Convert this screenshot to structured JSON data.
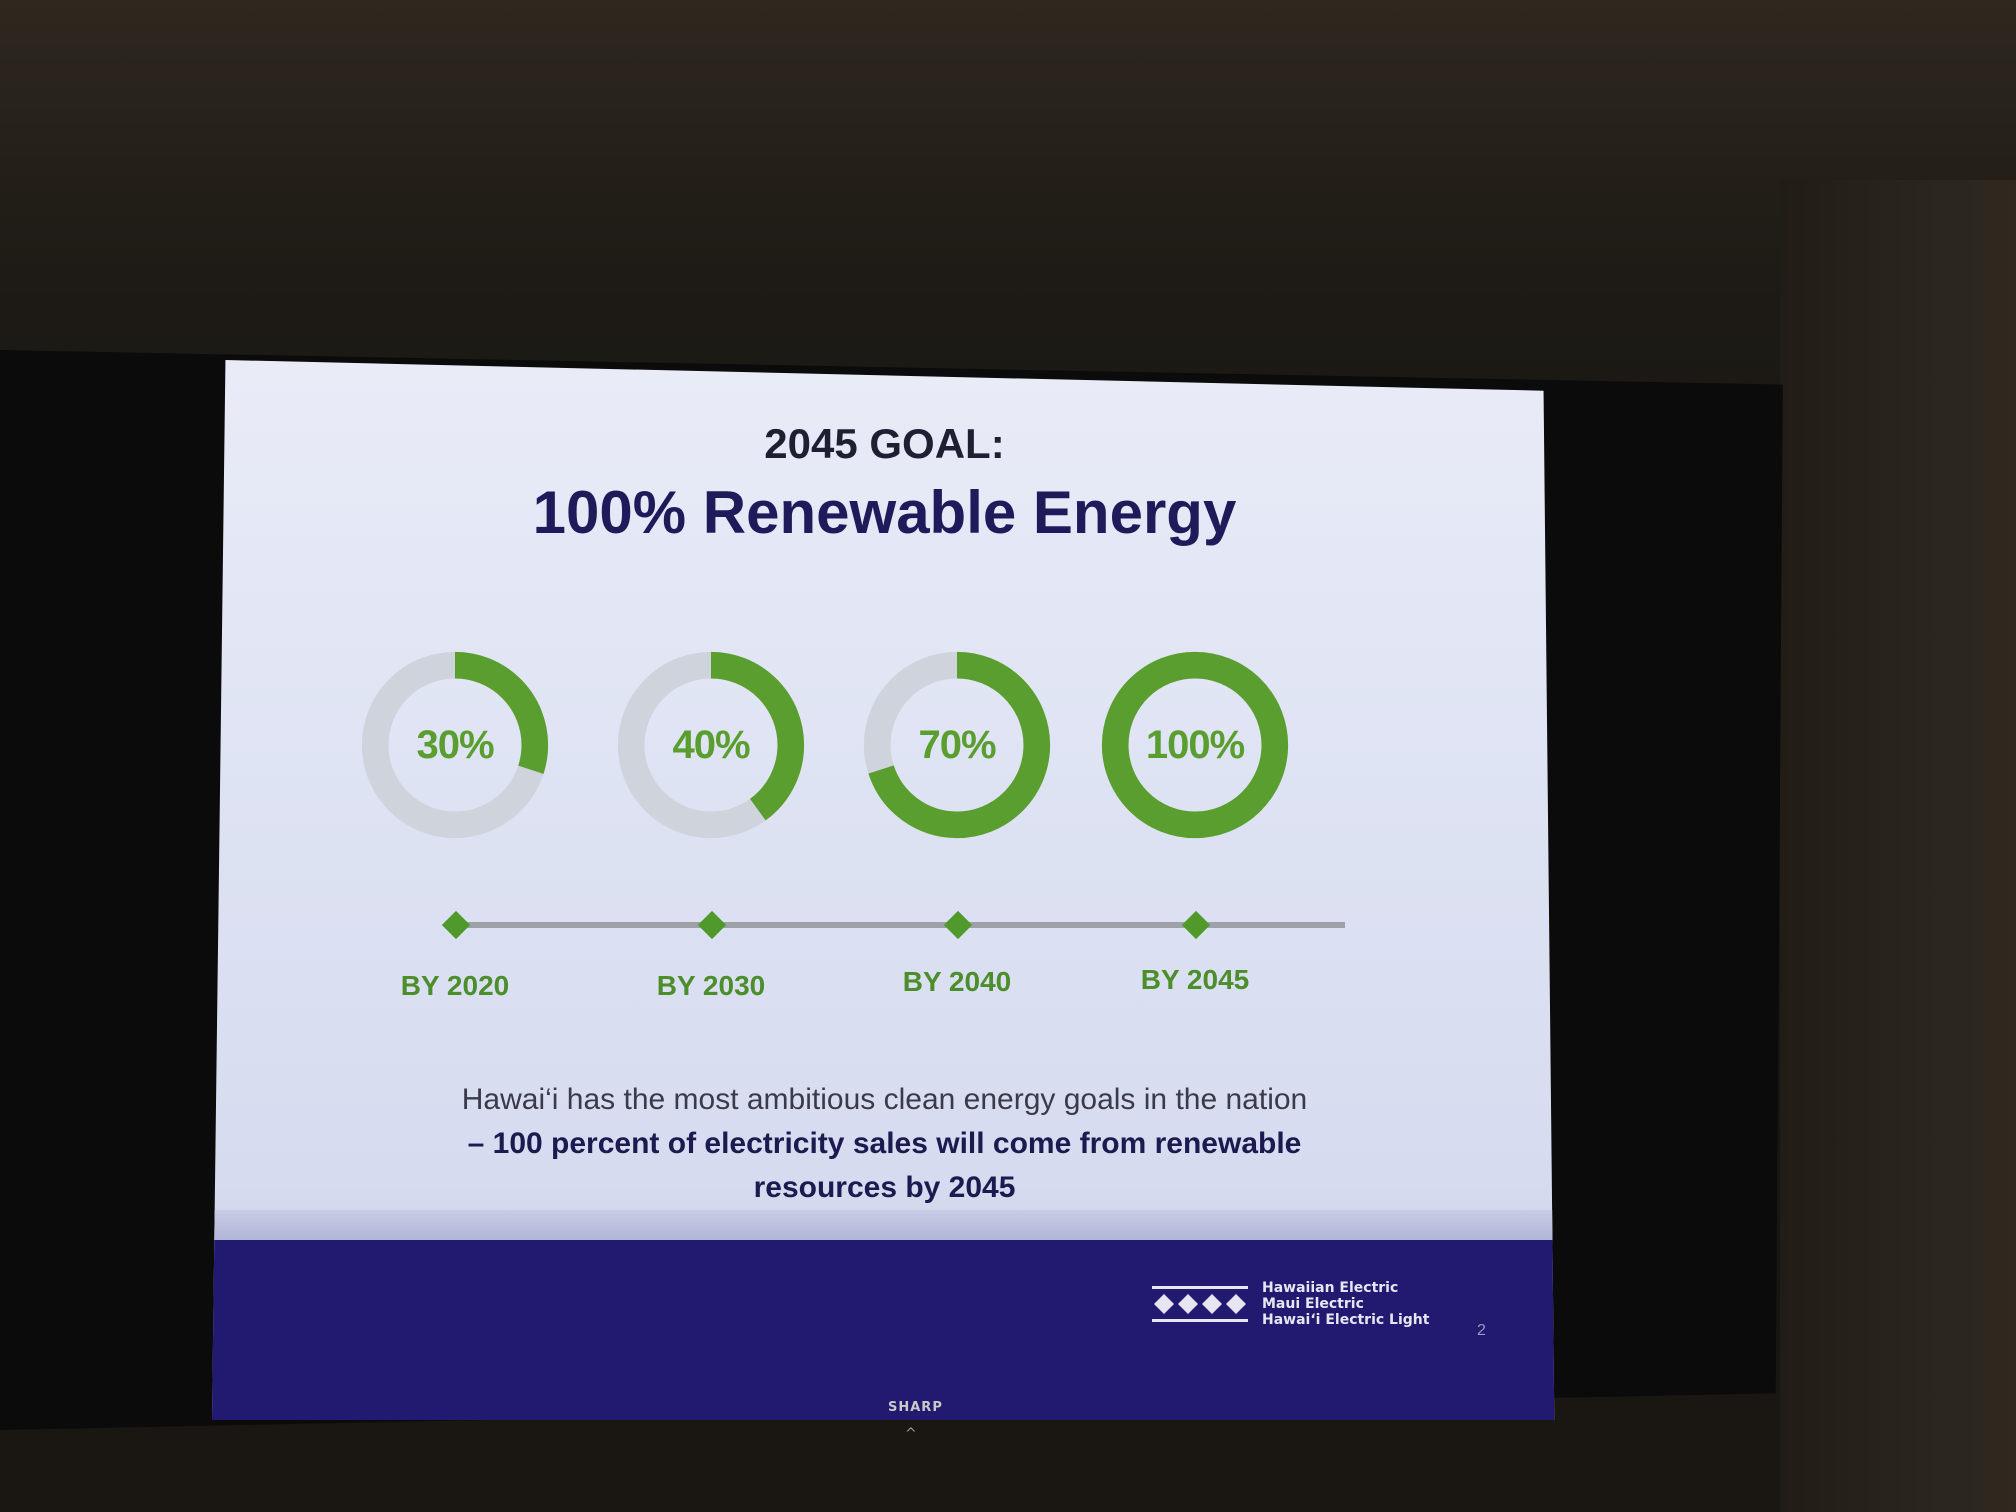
{
  "slide": {
    "kicker": "2045 GOAL:",
    "title": "100% Renewable Energy",
    "goals": [
      {
        "percent_label": "30%",
        "fraction": 0.3,
        "year_label": "BY 2020"
      },
      {
        "percent_label": "40%",
        "fraction": 0.4,
        "year_label": "BY 2030"
      },
      {
        "percent_label": "70%",
        "fraction": 0.7,
        "year_label": "BY 2040"
      },
      {
        "percent_label": "100%",
        "fraction": 1.0,
        "year_label": "BY 2045"
      }
    ],
    "caption_line1": "Hawai‘i has the most ambitious clean energy goals in the nation",
    "caption_line2": "– 100 percent of electricity sales will come from renewable",
    "caption_line3": "resources by 2045",
    "logo_lines": [
      "Hawaiian Electric",
      "Maui Electric",
      "Hawai‘i Electric Light"
    ],
    "page_number": "2"
  },
  "tv": {
    "brand": "SHARP",
    "indicator": "^"
  },
  "colors": {
    "accent_green": "#5a9e2f",
    "ring_track": "#cfd3dc",
    "navy": "#221a70",
    "title_navy": "#1f1b5a"
  }
}
